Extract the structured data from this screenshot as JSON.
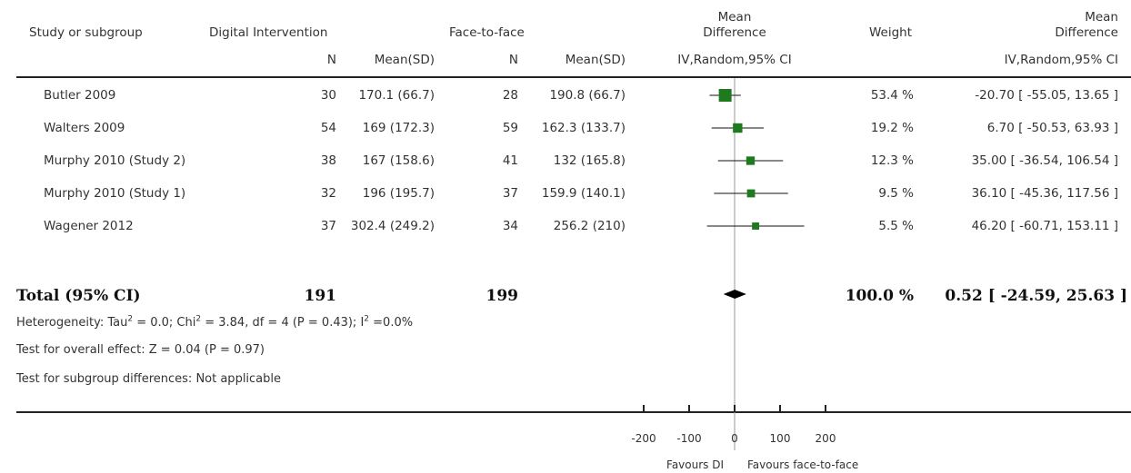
{
  "headers": {
    "study": "Study or subgroup",
    "group1": "Digital Intervention",
    "group2": "Face-to-face",
    "md_title_1": "Mean",
    "md_title_2": "Difference",
    "weight": "Weight",
    "md2_title_1": "Mean",
    "md2_title_2": "Difference",
    "n1": "N",
    "mean1": "Mean(SD)",
    "n2": "N",
    "mean2": "Mean(SD)",
    "method": "IV,Random,95% CI",
    "method2": "IV,Random,95% CI"
  },
  "studies": [
    {
      "name": "Butler 2009",
      "n1": "30",
      "mean1": "170.1 (66.7)",
      "n2": "28",
      "mean2": "190.8 (66.7)",
      "weight": "53.4 %",
      "ci_text": "-20.70 [ -55.05, 13.65 ]"
    },
    {
      "name": "Walters 2009",
      "n1": "54",
      "mean1": "169 (172.3)",
      "n2": "59",
      "mean2": "162.3 (133.7)",
      "weight": "19.2 %",
      "ci_text": "6.70 [ -50.53, 63.93 ]"
    },
    {
      "name": "Murphy 2010 (Study 2)",
      "n1": "38",
      "mean1": "167 (158.6)",
      "n2": "41",
      "mean2": "132 (165.8)",
      "weight": "12.3 %",
      "ci_text": "35.00 [ -36.54, 106.54 ]"
    },
    {
      "name": "Murphy 2010 (Study 1)",
      "n1": "32",
      "mean1": "196 (195.7)",
      "n2": "37",
      "mean2": "159.9 (140.1)",
      "weight": "9.5 %",
      "ci_text": "36.10 [ -45.36, 117.56 ]"
    },
    {
      "name": "Wagener 2012",
      "n1": "37",
      "mean1": "302.4 (249.2)",
      "n2": "34",
      "mean2": "256.2 (210)",
      "weight": "5.5 %",
      "ci_text": "46.20 [ -60.71, 153.11 ]"
    }
  ],
  "total": {
    "label": "Total (95% CI)",
    "n1": "191",
    "n2": "199",
    "weight": "100.0 %",
    "ci_text": "0.52 [ -24.59, 25.63 ]"
  },
  "stats": {
    "heterogeneity_prefix": "Heterogeneity: Tau",
    "heterogeneity_mid": " = 0.0; Chi",
    "heterogeneity_suffix": " = 3.84, df = 4 (P = 0.43); I",
    "heterogeneity_end": " =0.0%",
    "sup": "2",
    "overall": "Test for overall effect: Z = 0.04 (P = 0.97)",
    "subgroup": "Test for subgroup differences: Not applicable"
  },
  "axis": {
    "left_label": "Favours DI",
    "right_label": "Favours face-to-face"
  },
  "chart_data": {
    "type": "forest",
    "xlim": [
      -200,
      200
    ],
    "ticks": [
      -200,
      -100,
      0,
      100,
      200
    ],
    "studies": [
      {
        "name": "Butler 2009",
        "md": -20.7,
        "lo": -55.05,
        "hi": 13.65,
        "weight": 53.4
      },
      {
        "name": "Walters 2009",
        "md": 6.7,
        "lo": -50.53,
        "hi": 63.93,
        "weight": 19.2
      },
      {
        "name": "Murphy 2010 (Study 2)",
        "md": 35.0,
        "lo": -36.54,
        "hi": 106.54,
        "weight": 12.3
      },
      {
        "name": "Murphy 2010 (Study 1)",
        "md": 36.1,
        "lo": -45.36,
        "hi": 117.56,
        "weight": 9.5
      },
      {
        "name": "Wagener 2012",
        "md": 46.2,
        "lo": -60.71,
        "hi": 153.11,
        "weight": 5.5
      }
    ],
    "pooled": {
      "md": 0.52,
      "lo": -24.59,
      "hi": 25.63,
      "weight": 100.0
    },
    "marker_color": "#1f7a1f"
  }
}
